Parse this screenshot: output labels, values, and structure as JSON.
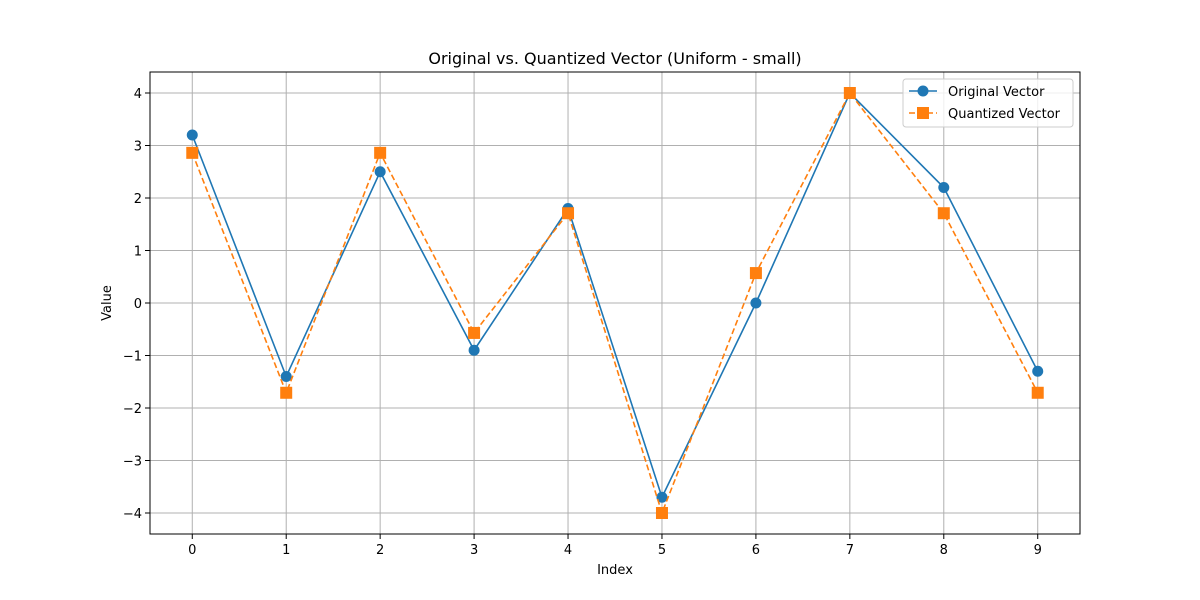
{
  "chart_data": {
    "type": "line",
    "title": "Original vs. Quantized Vector (Uniform - small)",
    "xlabel": "Index",
    "ylabel": "Value",
    "x": [
      0,
      1,
      2,
      3,
      4,
      5,
      6,
      7,
      8,
      9
    ],
    "xlim": [
      -0.45,
      9.45
    ],
    "ylim": [
      -4.4,
      4.4
    ],
    "yticks": [
      -4,
      -3,
      -2,
      -1,
      0,
      1,
      2,
      3,
      4
    ],
    "ytick_labels": [
      "−4",
      "−3",
      "−2",
      "−1",
      "0",
      "1",
      "2",
      "3",
      "4"
    ],
    "xtick_labels": [
      "0",
      "1",
      "2",
      "3",
      "4",
      "5",
      "6",
      "7",
      "8",
      "9"
    ],
    "grid": true,
    "legend_position": "top-right",
    "series": [
      {
        "name": "Original Vector",
        "values": [
          3.2,
          -1.4,
          2.5,
          -0.9,
          1.8,
          -3.7,
          0.0,
          4.0,
          2.2,
          -1.3
        ],
        "color": "#1f77b4",
        "marker": "circle",
        "linestyle": "solid"
      },
      {
        "name": "Quantized Vector",
        "values": [
          2.86,
          -1.71,
          2.86,
          -0.57,
          1.71,
          -4.0,
          0.57,
          4.0,
          1.71,
          -1.71
        ],
        "color": "#ff7f0e",
        "marker": "square",
        "linestyle": "dashed"
      }
    ]
  }
}
